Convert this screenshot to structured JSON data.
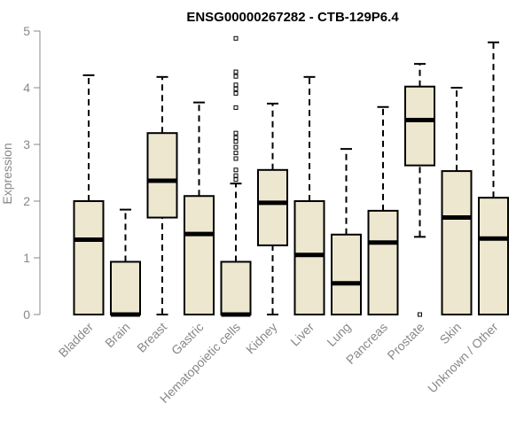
{
  "chart_data": {
    "type": "boxplot",
    "title": "ENSG00000267282 - CTB-129P6.4",
    "ylabel": "Expression",
    "xlabel": "",
    "ylim": [
      0,
      5
    ],
    "yticks": [
      0,
      1,
      2,
      3,
      4,
      5
    ],
    "grid": false,
    "box_color": "#EDE7CF",
    "categories": [
      "Bladder",
      "Brain",
      "Breast",
      "Gastric",
      "Hematopoietic cells",
      "Kidney",
      "Liver",
      "Lung",
      "Pancreas",
      "Prostate",
      "Skin",
      "Unknown / Other"
    ],
    "boxes": [
      {
        "min": 0,
        "q1": 0,
        "median": 1.32,
        "q3": 2.0,
        "max": 4.22,
        "outliers": []
      },
      {
        "min": 0,
        "q1": 0,
        "median": 0.0,
        "q3": 0.93,
        "max": 1.85,
        "outliers": []
      },
      {
        "min": 0,
        "q1": 1.71,
        "median": 2.36,
        "q3": 3.2,
        "max": 4.19,
        "outliers": []
      },
      {
        "min": 0,
        "q1": 0,
        "median": 1.42,
        "q3": 2.09,
        "max": 3.74,
        "outliers": []
      },
      {
        "min": 0,
        "q1": 0,
        "median": 0.0,
        "q3": 0.93,
        "max": 2.31,
        "outliers": [
          2.38,
          2.45,
          2.55,
          2.75,
          2.85,
          2.95,
          3.05,
          3.12,
          3.2,
          3.65,
          3.9,
          3.98,
          4.05,
          4.2,
          4.28,
          4.87
        ]
      },
      {
        "min": 0,
        "q1": 1.22,
        "median": 1.97,
        "q3": 2.55,
        "max": 3.72,
        "outliers": []
      },
      {
        "min": 0,
        "q1": 0,
        "median": 1.05,
        "q3": 2.0,
        "max": 4.19,
        "outliers": []
      },
      {
        "min": 0,
        "q1": 0,
        "median": 0.55,
        "q3": 1.41,
        "max": 2.92,
        "outliers": []
      },
      {
        "min": 0,
        "q1": 0,
        "median": 1.27,
        "q3": 1.83,
        "max": 3.66,
        "outliers": []
      },
      {
        "min": 1.37,
        "q1": 2.63,
        "median": 3.43,
        "q3": 4.02,
        "max": 4.42,
        "outliers": [
          0.0
        ]
      },
      {
        "min": 0,
        "q1": 0,
        "median": 1.71,
        "q3": 2.53,
        "max": 4.0,
        "outliers": []
      },
      {
        "min": 0,
        "q1": 0,
        "median": 1.34,
        "q3": 2.06,
        "max": 4.8,
        "outliers": []
      }
    ]
  }
}
